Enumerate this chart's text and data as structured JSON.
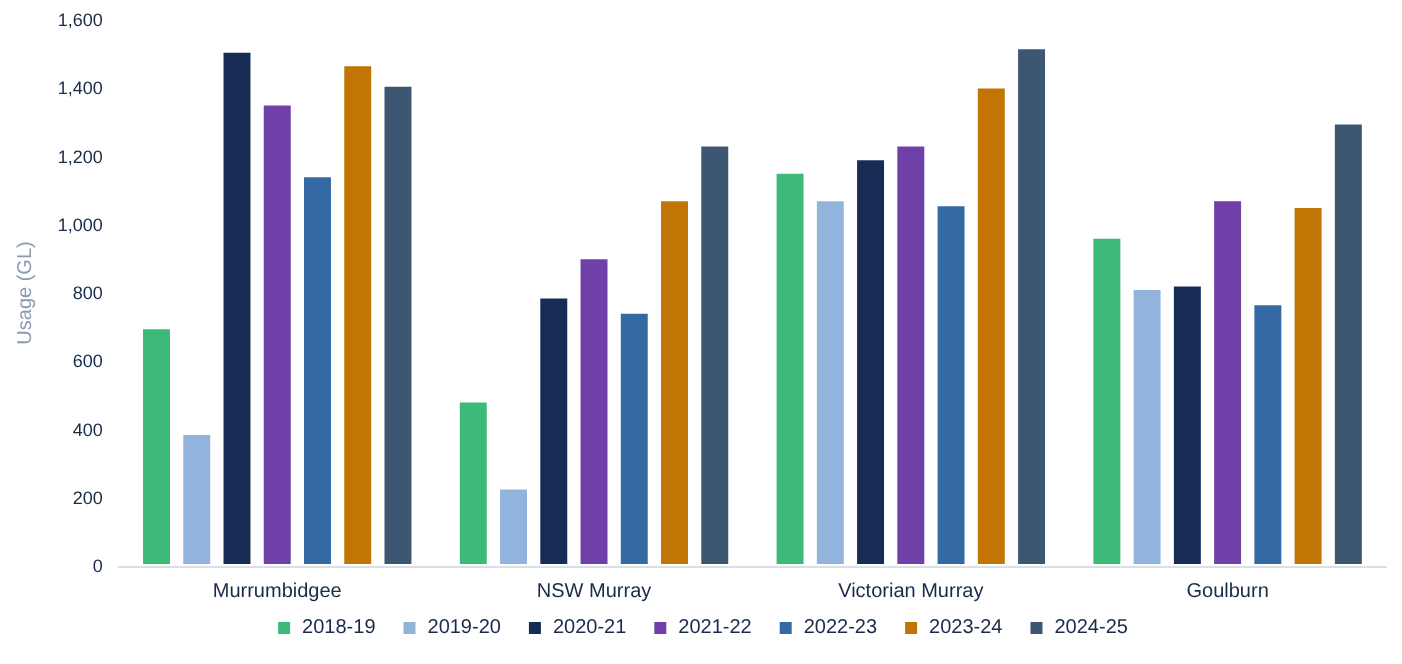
{
  "chart_data": {
    "type": "bar",
    "ylabel": "Usage (GL)",
    "categories": [
      "Murrumbidgee",
      "NSW Murray",
      "Victorian Murray",
      "Goulburn"
    ],
    "series": [
      {
        "name": "2018-19",
        "color": "#3dba78",
        "values": [
          700,
          485,
          1155,
          965
        ]
      },
      {
        "name": "2019-20",
        "color": "#92b4dc",
        "values": [
          390,
          230,
          1075,
          815
        ]
      },
      {
        "name": "2020-21",
        "color": "#172c55",
        "values": [
          1510,
          790,
          1195,
          825
        ]
      },
      {
        "name": "2021-22",
        "color": "#6e40a8",
        "values": [
          1355,
          905,
          1235,
          1075
        ]
      },
      {
        "name": "2022-23",
        "color": "#336aa3",
        "values": [
          1145,
          745,
          1060,
          770
        ]
      },
      {
        "name": "2023-24",
        "color": "#c27502",
        "values": [
          1470,
          1075,
          1405,
          1055
        ]
      },
      {
        "name": "2024-25",
        "color": "#3d5671",
        "values": [
          1410,
          1235,
          1520,
          1300
        ]
      }
    ],
    "ylim": [
      0,
      1600
    ],
    "yticks": [
      0,
      200,
      400,
      600,
      800,
      {
        "value": 1000,
        "label": "1,000"
      },
      {
        "value": 1200,
        "label": "1,200"
      },
      {
        "value": 1400,
        "label": "1,400"
      },
      {
        "value": 1600,
        "label": "1,600"
      }
    ],
    "grid": false,
    "legend": "bottom"
  }
}
